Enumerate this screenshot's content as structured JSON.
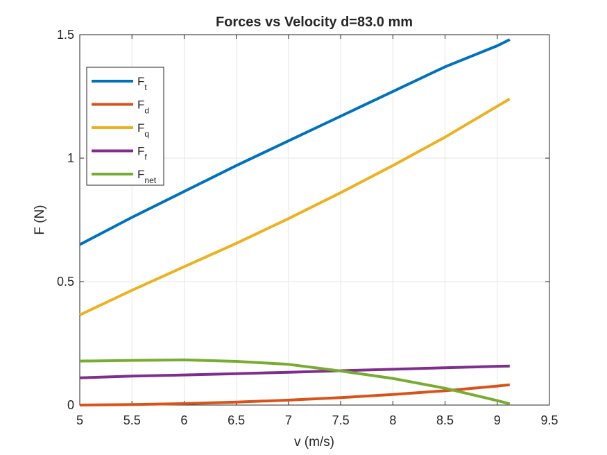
{
  "chart_data": {
    "type": "line",
    "title": "Forces vs Velocity d=83.0 mm",
    "xlabel": "v (m/s)",
    "ylabel": "F (N)",
    "xlim": [
      5,
      9.5
    ],
    "ylim": [
      0,
      1.5
    ],
    "xticks": [
      5,
      5.5,
      6,
      6.5,
      7,
      7.5,
      8,
      8.5,
      9,
      9.5
    ],
    "yticks": [
      0,
      0.5,
      1,
      1.5
    ],
    "xtick_labels": [
      "5",
      "5.5",
      "6",
      "6.5",
      "7",
      "7.5",
      "8",
      "8.5",
      "9",
      "9.5"
    ],
    "ytick_labels": [
      "0",
      "0.5",
      "1",
      "1.5"
    ],
    "grid": true,
    "legend_position": "top-left",
    "x": [
      5.0,
      5.5,
      6.0,
      6.5,
      7.0,
      7.5,
      8.0,
      8.5,
      9.0,
      9.12
    ],
    "series": [
      {
        "name": "F",
        "sub": "t",
        "color": "#0072BD",
        "values": [
          0.65,
          0.76,
          0.865,
          0.97,
          1.07,
          1.17,
          1.27,
          1.37,
          1.455,
          1.48
        ]
      },
      {
        "name": "F",
        "sub": "d",
        "color": "#D95319",
        "values": [
          0.0,
          0.002,
          0.006,
          0.012,
          0.02,
          0.03,
          0.043,
          0.058,
          0.077,
          0.082
        ]
      },
      {
        "name": "F",
        "sub": "q",
        "color": "#EDB120",
        "values": [
          0.365,
          0.465,
          0.56,
          0.655,
          0.755,
          0.86,
          0.97,
          1.085,
          1.21,
          1.24
        ]
      },
      {
        "name": "F",
        "sub": "f",
        "color": "#7E2F8E",
        "values": [
          0.11,
          0.117,
          0.122,
          0.127,
          0.133,
          0.139,
          0.145,
          0.151,
          0.157,
          0.158
        ]
      },
      {
        "name": "F",
        "sub": "net",
        "color": "#77AC30",
        "values": [
          0.178,
          0.181,
          0.183,
          0.177,
          0.165,
          0.138,
          0.108,
          0.068,
          0.018,
          0.005
        ]
      }
    ]
  }
}
